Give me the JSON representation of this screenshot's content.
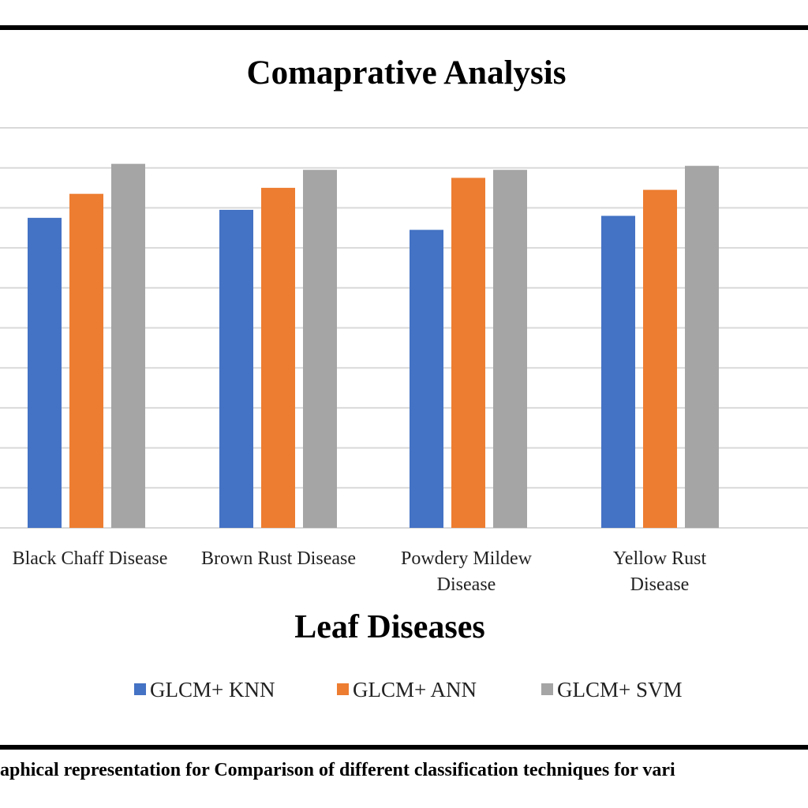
{
  "chart_data": {
    "type": "bar",
    "title": "Comaprative Analysis",
    "xlabel": "Leaf Diseases",
    "ylabel": "",
    "categories": [
      [
        "Black Chaff Disease"
      ],
      [
        "Brown Rust Disease"
      ],
      [
        "Powdery Mildew",
        "Disease"
      ],
      [
        "Yellow Rust",
        "Disease"
      ]
    ],
    "series": [
      {
        "name": "GLCM+ KNN",
        "color": "#4472C4",
        "values": [
          77.5,
          79.5,
          74.5,
          78
        ]
      },
      {
        "name": "GLCM+ ANN",
        "color": "#ED7D31",
        "values": [
          83.5,
          85,
          87.5,
          84.5
        ]
      },
      {
        "name": "GLCM+ SVM",
        "color": "#A5A5A5",
        "values": [
          91,
          89.5,
          89.5,
          90.5
        ]
      }
    ],
    "ylim": [
      0,
      100
    ],
    "grid": true,
    "legend_position": "bottom"
  },
  "caption": "aphical representation for Comparison of different classification techniques  for vari"
}
